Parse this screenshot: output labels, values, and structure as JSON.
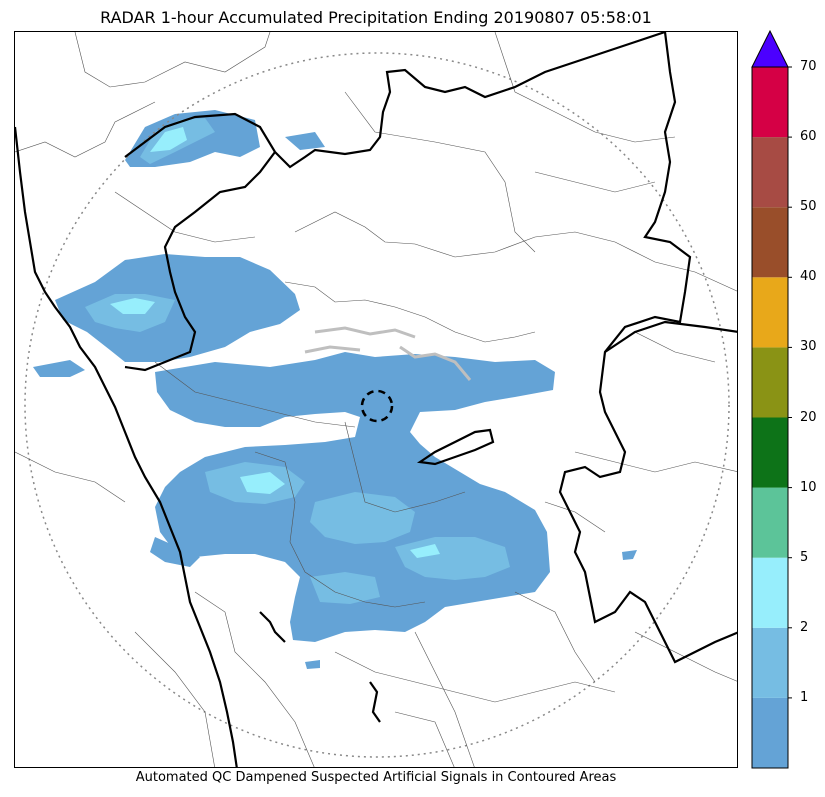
{
  "title": "RADAR 1-hour Accumulated Precipitation Ending 20190807 05:58:01",
  "caption": "Automated QC Dampened Suspected Artificial Signals in Contoured Areas",
  "colorbar": {
    "extend_color": "#4b00ff",
    "bins": [
      {
        "from": 0,
        "to": 1,
        "color": "#64a3d6"
      },
      {
        "from": 1,
        "to": 2,
        "color": "#76bde3"
      },
      {
        "from": 2,
        "to": 5,
        "color": "#97eefc"
      },
      {
        "from": 5,
        "to": 10,
        "color": "#5cc499"
      },
      {
        "from": 10,
        "to": 20,
        "color": "#0d7318"
      },
      {
        "from": 20,
        "to": 30,
        "color": "#8a9315"
      },
      {
        "from": 30,
        "to": 40,
        "color": "#e8a81a"
      },
      {
        "from": 40,
        "to": 50,
        "color": "#994e2a"
      },
      {
        "from": 50,
        "to": 60,
        "color": "#a74b44"
      },
      {
        "from": 60,
        "to": 70,
        "color": "#d50045"
      }
    ],
    "tick_labels": [
      "1",
      "2",
      "5",
      "10",
      "20",
      "30",
      "40",
      "50",
      "60",
      "70"
    ]
  },
  "map": {
    "range_ring": "dotted",
    "radar_site_marker": "dashed-circle"
  }
}
